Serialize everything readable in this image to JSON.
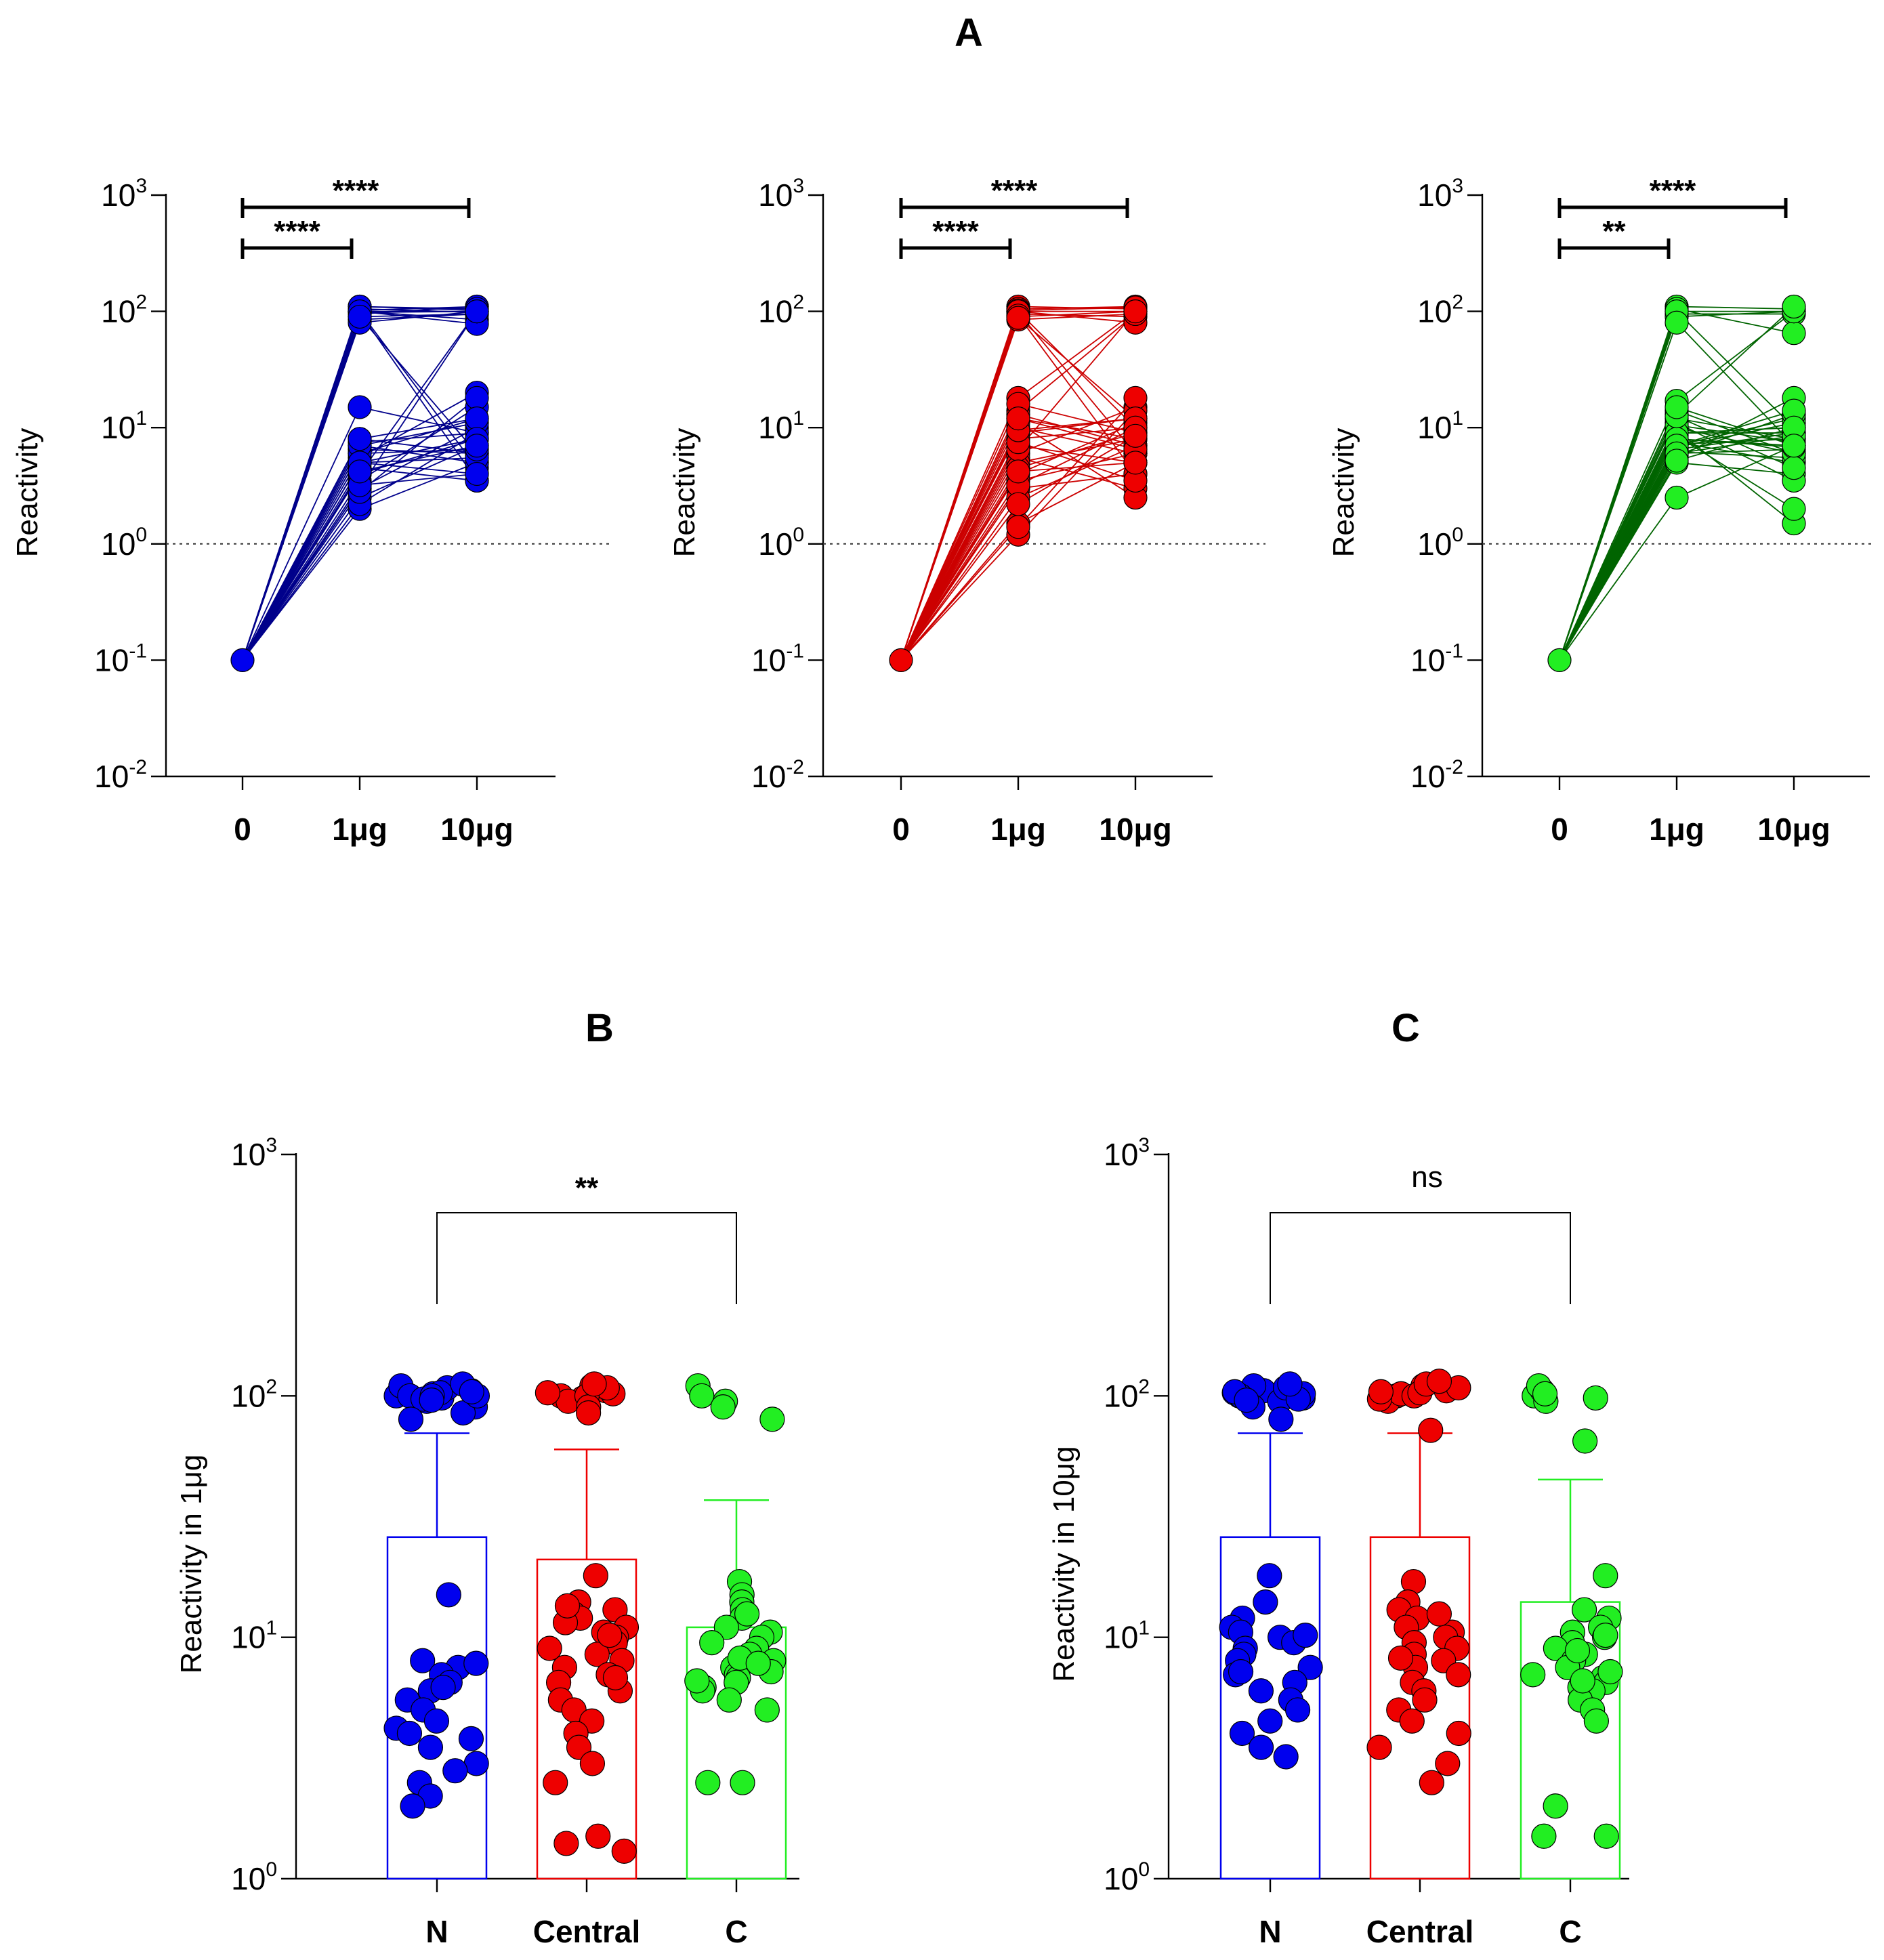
{
  "figure": {
    "panel_titles": {
      "A": "A",
      "B": "B",
      "C": "C"
    }
  },
  "chart_data": [
    {
      "id": "A1",
      "type": "line",
      "scale": "log",
      "ylabel": "Reactivity",
      "categories": [
        "0",
        "1μg",
        "10μg"
      ],
      "ylim": [
        0.01,
        1000
      ],
      "y_ticks": [
        {
          "base": "10",
          "exp": "-2"
        },
        {
          "base": "10",
          "exp": "-1"
        },
        {
          "base": "10",
          "exp": "0"
        },
        {
          "base": "10",
          "exp": "1"
        },
        {
          "base": "10",
          "exp": "2"
        },
        {
          "base": "10",
          "exp": "3"
        }
      ],
      "threshold": 1,
      "color": "#0000ee",
      "line_color": "#00008b",
      "baseline": 0.1,
      "pairs": [
        [
          100,
          100
        ],
        [
          105,
          98
        ],
        [
          95,
          110
        ],
        [
          110,
          102
        ],
        [
          90,
          95
        ],
        [
          100,
          85
        ],
        [
          98,
          100
        ],
        [
          102,
          110
        ],
        [
          85,
          95
        ],
        [
          100,
          78
        ],
        [
          80,
          100
        ],
        [
          110,
          105
        ],
        [
          98,
          3.5
        ],
        [
          100,
          4.5
        ],
        [
          90,
          6
        ],
        [
          15,
          9
        ],
        [
          8,
          6
        ],
        [
          7,
          5
        ],
        [
          6,
          12
        ],
        [
          5,
          4
        ],
        [
          4,
          8
        ],
        [
          3,
          10
        ],
        [
          2.5,
          7
        ],
        [
          2,
          5
        ],
        [
          3.5,
          15
        ],
        [
          4.5,
          3.5
        ],
        [
          5.5,
          20
        ],
        [
          6.5,
          6
        ],
        [
          7.5,
          9
        ],
        [
          3,
          100
        ],
        [
          4,
          100
        ],
        [
          5,
          5.5
        ],
        [
          2.2,
          9
        ],
        [
          2.8,
          18
        ],
        [
          3.2,
          4
        ],
        [
          6,
          6.5
        ],
        [
          7,
          11
        ],
        [
          8,
          12
        ],
        [
          5,
          8
        ],
        [
          4.2,
          7
        ]
      ],
      "comparisons": [
        {
          "from": 0,
          "to": 2,
          "label": "****"
        },
        {
          "from": 0,
          "to": 1,
          "label": "****"
        }
      ]
    },
    {
      "id": "A2",
      "type": "line",
      "scale": "log",
      "ylabel": "Reactivity",
      "categories": [
        "0",
        "1μg",
        "10μg"
      ],
      "ylim": [
        0.01,
        1000
      ],
      "y_ticks": [
        {
          "base": "10",
          "exp": "-2"
        },
        {
          "base": "10",
          "exp": "-1"
        },
        {
          "base": "10",
          "exp": "0"
        },
        {
          "base": "10",
          "exp": "1"
        },
        {
          "base": "10",
          "exp": "2"
        },
        {
          "base": "10",
          "exp": "3"
        }
      ],
      "threshold": 1,
      "color": "#ee0000",
      "line_color": "#cc0000",
      "baseline": 0.1,
      "pairs": [
        [
          100,
          100
        ],
        [
          110,
          105
        ],
        [
          95,
          90
        ],
        [
          105,
          110
        ],
        [
          90,
          100
        ],
        [
          100,
          80
        ],
        [
          85,
          95
        ],
        [
          102,
          108
        ],
        [
          98,
          6
        ],
        [
          100,
          10
        ],
        [
          92,
          4
        ],
        [
          88,
          12
        ],
        [
          18,
          100
        ],
        [
          14,
          95
        ],
        [
          12,
          8
        ],
        [
          10,
          6
        ],
        [
          9,
          12
        ],
        [
          8,
          10
        ],
        [
          7,
          5
        ],
        [
          6,
          15
        ],
        [
          5.5,
          3
        ],
        [
          5,
          8
        ],
        [
          4.5,
          9
        ],
        [
          4,
          11
        ],
        [
          3.5,
          6
        ],
        [
          3,
          4
        ],
        [
          2.5,
          7
        ],
        [
          1.5,
          5
        ],
        [
          1.2,
          14
        ],
        [
          1.4,
          18
        ],
        [
          11,
          2.5
        ],
        [
          13,
          7
        ],
        [
          16,
          9
        ],
        [
          6.5,
          100
        ],
        [
          7.5,
          3.5
        ],
        [
          9.5,
          12
        ],
        [
          12,
          6.5
        ],
        [
          3.2,
          10
        ],
        [
          2.2,
          8.5
        ],
        [
          4.2,
          5
        ]
      ],
      "comparisons": [
        {
          "from": 0,
          "to": 2,
          "label": "****"
        },
        {
          "from": 0,
          "to": 1,
          "label": "****"
        }
      ]
    },
    {
      "id": "A3",
      "type": "line",
      "scale": "log",
      "ylabel": "Reactivity",
      "categories": [
        "0",
        "1μg",
        "10μg"
      ],
      "ylim": [
        0.01,
        1000
      ],
      "y_ticks": [
        {
          "base": "10",
          "exp": "-2"
        },
        {
          "base": "10",
          "exp": "-1"
        },
        {
          "base": "10",
          "exp": "0"
        },
        {
          "base": "10",
          "exp": "1"
        },
        {
          "base": "10",
          "exp": "2"
        },
        {
          "base": "10",
          "exp": "3"
        }
      ],
      "threshold": 1,
      "color": "#22ee22",
      "line_color": "#006400",
      "baseline": 0.1,
      "pairs": [
        [
          100,
          100
        ],
        [
          110,
          105
        ],
        [
          95,
          95
        ],
        [
          105,
          65
        ],
        [
          90,
          100
        ],
        [
          100,
          10
        ],
        [
          80,
          7
        ],
        [
          17,
          100
        ],
        [
          13,
          110
        ],
        [
          12,
          8
        ],
        [
          10,
          6
        ],
        [
          9,
          10
        ],
        [
          8,
          7
        ],
        [
          7.5,
          5
        ],
        [
          7,
          12
        ],
        [
          6.5,
          9
        ],
        [
          6,
          6.5
        ],
        [
          5.5,
          18
        ],
        [
          5,
          4
        ],
        [
          2.5,
          7
        ],
        [
          11,
          3.5
        ],
        [
          9.5,
          1.5
        ],
        [
          8.5,
          2
        ],
        [
          7.2,
          8
        ],
        [
          6.8,
          11
        ],
        [
          6.2,
          5.5
        ],
        [
          5.8,
          13
        ],
        [
          14,
          6
        ],
        [
          10.5,
          7.5
        ],
        [
          9,
          9
        ],
        [
          8,
          6.8
        ],
        [
          7,
          14
        ],
        [
          6,
          8.5
        ],
        [
          5.2,
          10
        ],
        [
          12.5,
          4.5
        ],
        [
          15,
          7
        ]
      ],
      "comparisons": [
        {
          "from": 0,
          "to": 2,
          "label": "****"
        },
        {
          "from": 0,
          "to": 1,
          "label": "**"
        }
      ]
    },
    {
      "id": "B",
      "type": "bar",
      "scale": "log",
      "title": "B",
      "ylabel": "Reactivity in 1μg",
      "categories": [
        "N",
        "Central",
        "C"
      ],
      "ylim": [
        1,
        1000
      ],
      "y_ticks": [
        {
          "base": "10",
          "exp": "0"
        },
        {
          "base": "10",
          "exp": "1"
        },
        {
          "base": "10",
          "exp": "2"
        },
        {
          "base": "10",
          "exp": "3"
        }
      ],
      "bars": [
        {
          "name": "N",
          "mean": 26,
          "error_top": 70,
          "color": "#0000ee",
          "points": [
            100,
            105,
            110,
            98,
            95,
            102,
            108,
            100,
            97,
            103,
            90,
            85,
            80,
            100,
            112,
            100,
            104,
            96,
            15,
            8,
            7.5,
            7,
            6.5,
            6,
            5.5,
            5,
            4.5,
            4.2,
            4,
            3.5,
            3,
            2.8,
            2.5,
            2.2,
            2,
            6.2,
            7.8,
            3.8
          ]
        },
        {
          "name": "Central",
          "mean": 21,
          "error_top": 60,
          "color": "#ee0000",
          "points": [
            100,
            105,
            110,
            98,
            95,
            102,
            108,
            100,
            90,
            85,
            103,
            112,
            18,
            14,
            13,
            12.5,
            12,
            11.5,
            11,
            10.5,
            10,
            9.5,
            9,
            8.5,
            8,
            7.5,
            7,
            6.5,
            6,
            5.5,
            5,
            4.5,
            4,
            3.5,
            3,
            2.5,
            1.5,
            1.3,
            1.4,
            13.5,
            10.2,
            6.8
          ]
        },
        {
          "name": "C",
          "mean": 11,
          "error_top": 37,
          "color": "#22ee22",
          "points": [
            110,
            100,
            95,
            90,
            80,
            17,
            15,
            14,
            13,
            12,
            11,
            10.5,
            10,
            9.5,
            9,
            8.5,
            8,
            7.5,
            7.2,
            7,
            6.8,
            6.5,
            6.2,
            6,
            5.5,
            5,
            2.5,
            2.5,
            8.2,
            7.8,
            6.6,
            12.5
          ]
        }
      ],
      "comparison": {
        "from": 0,
        "to": 2,
        "label": "**",
        "bold": true
      }
    },
    {
      "id": "C",
      "type": "bar",
      "scale": "log",
      "title": "C",
      "ylabel": "Reactivity in 10μg",
      "categories": [
        "N",
        "Central",
        "C"
      ],
      "ylim": [
        1,
        1000
      ],
      "y_ticks": [
        {
          "base": "10",
          "exp": "0"
        },
        {
          "base": "10",
          "exp": "1"
        },
        {
          "base": "10",
          "exp": "2"
        },
        {
          "base": "10",
          "exp": "3"
        }
      ],
      "bars": [
        {
          "name": "N",
          "mean": 26,
          "error_top": 70,
          "color": "#0000ee",
          "points": [
            100,
            105,
            110,
            98,
            95,
            102,
            108,
            100,
            97,
            103,
            90,
            112,
            80,
            100,
            104,
            96,
            18,
            14,
            12,
            11,
            10.5,
            10,
            9.5,
            9,
            8.5,
            8,
            7.5,
            7,
            6.5,
            6,
            5.5,
            5,
            4.5,
            4,
            3.5,
            3.2,
            10.2,
            7.2
          ]
        },
        {
          "name": "Central",
          "mean": 26,
          "error_top": 70,
          "color": "#ee0000",
          "points": [
            100,
            105,
            110,
            98,
            95,
            102,
            108,
            100,
            97,
            103,
            112,
            115,
            72,
            104,
            17,
            14,
            13,
            12,
            11,
            10.5,
            10,
            9.5,
            9,
            8.5,
            8,
            7.5,
            7,
            6.5,
            6,
            5.5,
            5,
            4.5,
            4,
            3.5,
            3,
            2.5,
            12.5,
            8.2
          ]
        },
        {
          "name": "C",
          "mean": 14,
          "error_top": 45,
          "color": "#22ee22",
          "points": [
            100,
            105,
            110,
            98,
            95,
            102,
            65,
            18,
            13,
            12,
            11,
            10.5,
            10,
            9.5,
            9,
            8.5,
            8,
            7.5,
            7,
            6.8,
            6.5,
            6.2,
            6,
            5.5,
            5,
            4.5,
            2,
            1.5,
            1.5,
            7.2,
            6.6,
            10.2,
            8.8
          ]
        }
      ],
      "comparison": {
        "from": 0,
        "to": 2,
        "label": "ns",
        "bold": false
      }
    }
  ]
}
